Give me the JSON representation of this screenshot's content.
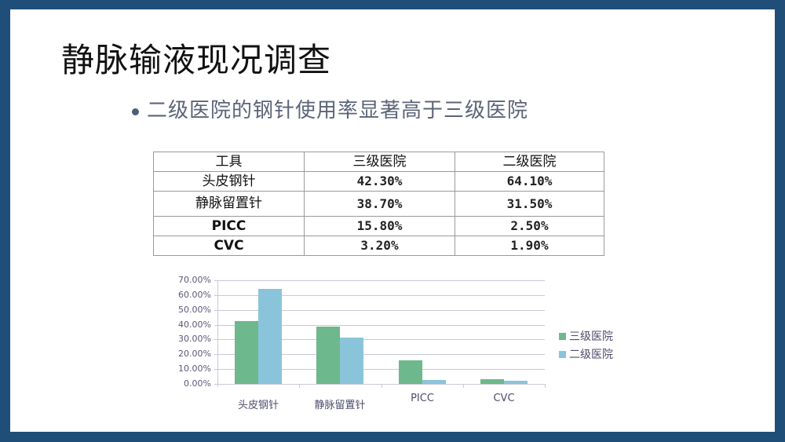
{
  "slide": {
    "title": "静脉输液现况调查",
    "bullet": "二级医院的钢针使用率显著高于三级医院",
    "colors": {
      "border": "#1f4e79",
      "series1": "#6db88c",
      "series2": "#8ac4da"
    }
  },
  "table": {
    "headers": [
      "工具",
      "三级医院",
      "二级医院"
    ],
    "rows": [
      [
        "头皮钢针",
        "42.30%",
        "64.10%"
      ],
      [
        "静脉留置针",
        "38.70%",
        "31.50%"
      ],
      [
        "PICC",
        "15.80%",
        "2.50%"
      ],
      [
        "CVC",
        "3.20%",
        "1.90%"
      ]
    ]
  },
  "chart_data": {
    "type": "bar",
    "title": "",
    "xlabel": "",
    "ylabel": "",
    "categories": [
      "头皮钢针",
      "静脉留置针",
      "PICC",
      "CVC"
    ],
    "series": [
      {
        "name": "三级医院",
        "values": [
          42.3,
          38.7,
          15.8,
          3.2
        ],
        "color": "#6db88c"
      },
      {
        "name": "二级医院",
        "values": [
          64.1,
          31.5,
          2.5,
          1.9
        ],
        "color": "#8ac4da"
      }
    ],
    "ylim": [
      0,
      70
    ],
    "yticks": [
      "0.00%",
      "10.00%",
      "20.00%",
      "30.00%",
      "40.00%",
      "50.00%",
      "60.00%",
      "70.00%"
    ],
    "grid": true,
    "legend_position": "right"
  }
}
